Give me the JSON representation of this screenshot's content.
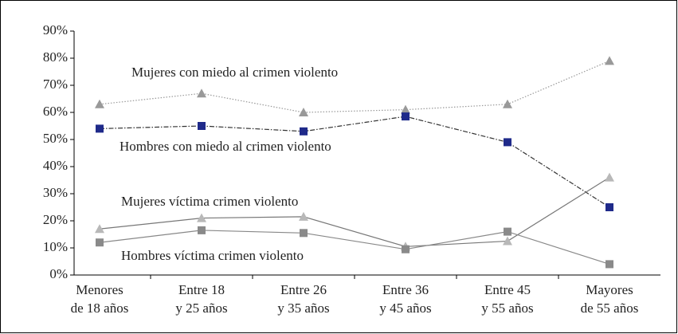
{
  "chart_data": {
    "type": "line",
    "categories": [
      [
        "Menores",
        "de 18 años"
      ],
      [
        "Entre 18",
        "y 25 años"
      ],
      [
        "Entre 26",
        "y 35 años"
      ],
      [
        "Entre 36",
        "y 45 años"
      ],
      [
        "Entre 45",
        "y 55 años"
      ],
      [
        "Mayores",
        "de 55 años"
      ]
    ],
    "series": [
      {
        "name": "Mujeres con miedo al crimen violento",
        "color": "#999999",
        "marker": "triangle",
        "dash": "1.5,2",
        "values": [
          63,
          67,
          60,
          61,
          63,
          79
        ]
      },
      {
        "name": "Hombres con miedo al crimen violento",
        "color": "#1f2a8a",
        "line_color": "#333333",
        "marker": "square",
        "dash": "6,2,1.5,2",
        "values": [
          54,
          55,
          53,
          58.5,
          49,
          25
        ]
      },
      {
        "name": "Mujeres víctima crimen violento",
        "color": "#b8b8b8",
        "line_color": "#777777",
        "marker": "triangle",
        "dash": "none",
        "values": [
          17,
          21,
          21.5,
          10.5,
          12.5,
          36
        ]
      },
      {
        "name": "Hombres víctima crimen violento",
        "color": "#8a8a8a",
        "line_color": "#888888",
        "marker": "square",
        "dash": "none",
        "values": [
          12,
          16.5,
          15.5,
          9.5,
          16,
          4
        ]
      }
    ],
    "ylim": [
      0,
      90
    ],
    "yticks": [
      {
        "value": 0,
        "label": "0%"
      },
      {
        "value": 10,
        "label": "10%"
      },
      {
        "value": 20,
        "label": "20%"
      },
      {
        "value": 30,
        "label": "30%"
      },
      {
        "value": 40,
        "label": "40%"
      },
      {
        "value": 50,
        "label": "50%"
      },
      {
        "value": 60,
        "label": "60%"
      },
      {
        "value": 70,
        "label": "70%"
      },
      {
        "value": 80,
        "label": "80%"
      },
      {
        "value": 90,
        "label": "90%"
      }
    ]
  }
}
